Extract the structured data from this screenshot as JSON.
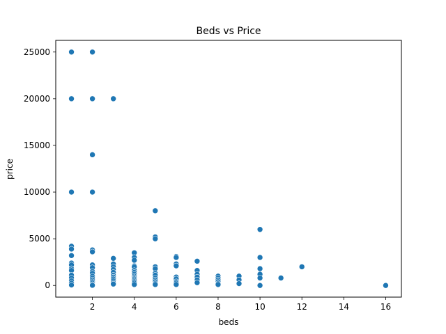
{
  "chart_data": {
    "type": "scatter",
    "title": "Beds vs Price",
    "xlabel": "beds",
    "ylabel": "price",
    "xlim": [
      0.25,
      16.75
    ],
    "ylim": [
      -1250,
      26250
    ],
    "xticks": [
      2,
      4,
      6,
      8,
      10,
      12,
      14,
      16
    ],
    "yticks": [
      0,
      5000,
      10000,
      15000,
      20000,
      25000
    ],
    "grid": false,
    "legend": "none",
    "marker_color": "#1f77b4",
    "marker_edge_color": "#ffffff",
    "points": [
      {
        "x": 1,
        "y": 25000
      },
      {
        "x": 1,
        "y": 20000
      },
      {
        "x": 1,
        "y": 10000
      },
      {
        "x": 1,
        "y": 4200
      },
      {
        "x": 1,
        "y": 3900
      },
      {
        "x": 1,
        "y": 3200
      },
      {
        "x": 1,
        "y": 2400
      },
      {
        "x": 1,
        "y": 2200
      },
      {
        "x": 1,
        "y": 1800
      },
      {
        "x": 1,
        "y": 1600
      },
      {
        "x": 1,
        "y": 1100
      },
      {
        "x": 1,
        "y": 800
      },
      {
        "x": 1,
        "y": 500
      },
      {
        "x": 1,
        "y": 250
      },
      {
        "x": 1,
        "y": 50
      },
      {
        "x": 2,
        "y": 25000
      },
      {
        "x": 2,
        "y": 20000
      },
      {
        "x": 2,
        "y": 14000
      },
      {
        "x": 2,
        "y": 10000
      },
      {
        "x": 2,
        "y": 3800
      },
      {
        "x": 2,
        "y": 3600
      },
      {
        "x": 2,
        "y": 2200
      },
      {
        "x": 2,
        "y": 1900
      },
      {
        "x": 2,
        "y": 1500
      },
      {
        "x": 2,
        "y": 1300
      },
      {
        "x": 2,
        "y": 1000
      },
      {
        "x": 2,
        "y": 800
      },
      {
        "x": 2,
        "y": 600
      },
      {
        "x": 2,
        "y": 400
      },
      {
        "x": 2,
        "y": 250
      },
      {
        "x": 2,
        "y": 100
      },
      {
        "x": 2,
        "y": 20
      },
      {
        "x": 3,
        "y": 20000
      },
      {
        "x": 3,
        "y": 2900
      },
      {
        "x": 3,
        "y": 2300
      },
      {
        "x": 3,
        "y": 2000
      },
      {
        "x": 3,
        "y": 1700
      },
      {
        "x": 3,
        "y": 1400
      },
      {
        "x": 3,
        "y": 1100
      },
      {
        "x": 3,
        "y": 900
      },
      {
        "x": 3,
        "y": 700
      },
      {
        "x": 3,
        "y": 500
      },
      {
        "x": 3,
        "y": 300
      },
      {
        "x": 3,
        "y": 150
      },
      {
        "x": 4,
        "y": 3500
      },
      {
        "x": 4,
        "y": 3000
      },
      {
        "x": 4,
        "y": 2700
      },
      {
        "x": 4,
        "y": 2100
      },
      {
        "x": 4,
        "y": 2000
      },
      {
        "x": 4,
        "y": 1600
      },
      {
        "x": 4,
        "y": 1400
      },
      {
        "x": 4,
        "y": 1200
      },
      {
        "x": 4,
        "y": 1000
      },
      {
        "x": 4,
        "y": 850
      },
      {
        "x": 4,
        "y": 700
      },
      {
        "x": 4,
        "y": 550
      },
      {
        "x": 4,
        "y": 400
      },
      {
        "x": 4,
        "y": 250
      },
      {
        "x": 4,
        "y": 100
      },
      {
        "x": 5,
        "y": 8000
      },
      {
        "x": 5,
        "y": 5200
      },
      {
        "x": 5,
        "y": 5000
      },
      {
        "x": 5,
        "y": 2000
      },
      {
        "x": 5,
        "y": 1800
      },
      {
        "x": 5,
        "y": 1300
      },
      {
        "x": 5,
        "y": 1100
      },
      {
        "x": 5,
        "y": 800
      },
      {
        "x": 5,
        "y": 600
      },
      {
        "x": 5,
        "y": 400
      },
      {
        "x": 5,
        "y": 200
      },
      {
        "x": 5,
        "y": 100
      },
      {
        "x": 6,
        "y": 3100
      },
      {
        "x": 6,
        "y": 3000
      },
      {
        "x": 6,
        "y": 2300
      },
      {
        "x": 6,
        "y": 2100
      },
      {
        "x": 6,
        "y": 900
      },
      {
        "x": 6,
        "y": 700
      },
      {
        "x": 6,
        "y": 400
      },
      {
        "x": 6,
        "y": 250
      },
      {
        "x": 6,
        "y": 100
      },
      {
        "x": 7,
        "y": 2600
      },
      {
        "x": 7,
        "y": 1600
      },
      {
        "x": 7,
        "y": 1200
      },
      {
        "x": 7,
        "y": 900
      },
      {
        "x": 7,
        "y": 600
      },
      {
        "x": 7,
        "y": 300
      },
      {
        "x": 8,
        "y": 1000
      },
      {
        "x": 8,
        "y": 800
      },
      {
        "x": 8,
        "y": 600
      },
      {
        "x": 8,
        "y": 400
      },
      {
        "x": 8,
        "y": 200
      },
      {
        "x": 8,
        "y": 100
      },
      {
        "x": 9,
        "y": 1000
      },
      {
        "x": 9,
        "y": 600
      },
      {
        "x": 9,
        "y": 200
      },
      {
        "x": 10,
        "y": 6000
      },
      {
        "x": 10,
        "y": 3000
      },
      {
        "x": 10,
        "y": 1800
      },
      {
        "x": 10,
        "y": 1200
      },
      {
        "x": 10,
        "y": 800
      },
      {
        "x": 10,
        "y": 0
      },
      {
        "x": 11,
        "y": 800
      },
      {
        "x": 12,
        "y": 2000
      },
      {
        "x": 16,
        "y": 0
      }
    ]
  }
}
